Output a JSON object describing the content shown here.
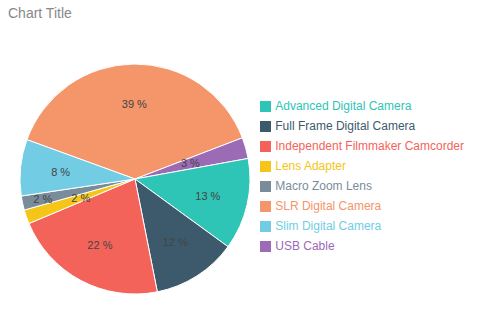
{
  "chart_data": {
    "type": "pie",
    "title": "Chart Title",
    "categories": [
      "SLR Digital Camera",
      "USB Cable",
      "Advanced Digital Camera",
      "Full Frame Digital Camera",
      "Independent Filmmaker Camcorder",
      "Lens Adapter",
      "Macro Zoom Lens",
      "Slim Digital Camera"
    ],
    "values": [
      39,
      3,
      13,
      12,
      22,
      2,
      2,
      8
    ],
    "value_labels": [
      "39 %",
      "3 %",
      "13 %",
      "12 %",
      "22 %",
      "2 %",
      "2 %",
      "8 %"
    ],
    "colors": [
      "#F4956A",
      "#9B6BB5",
      "#2EC4B6",
      "#3D5A6C",
      "#F4635A",
      "#F5C518",
      "#7A8C9A",
      "#72CDE4"
    ],
    "data_labels": true,
    "legend": "right"
  }
}
